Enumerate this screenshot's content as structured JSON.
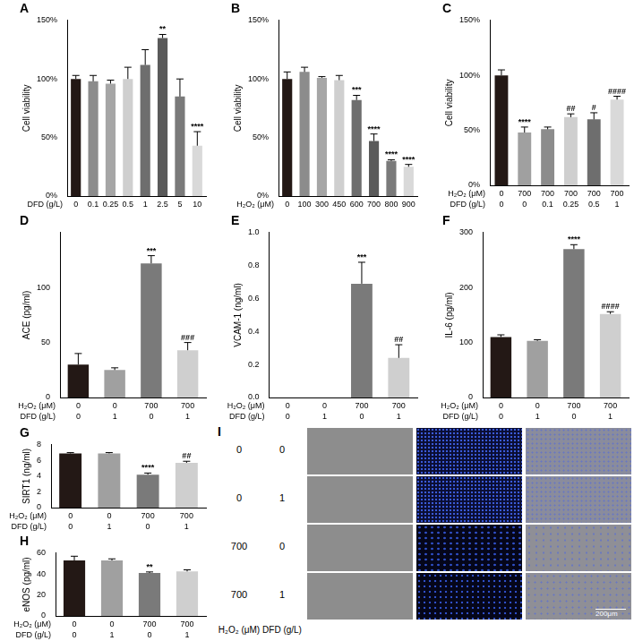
{
  "chart_data": [
    {
      "type": "bar",
      "title": "A",
      "ylabel": "Cell viability",
      "xlabel": [
        "DFD (g/L)"
      ],
      "categories": [
        "0",
        "0.1",
        "0.25",
        "0.5",
        "1",
        "2.5",
        "5",
        "10"
      ],
      "values": [
        100,
        98,
        96,
        100,
        112,
        135,
        85,
        43
      ],
      "errors": [
        3,
        5,
        3,
        10,
        13,
        3,
        15,
        12
      ],
      "annotations": [
        null,
        null,
        null,
        null,
        null,
        "**",
        null,
        "****"
      ],
      "colors": [
        "#231815",
        "#8c8c8c",
        "#a6a6a6",
        "#cfcfcf",
        "#6e6e6e",
        "#5a5a5a",
        "#7a7a7a",
        "#d9d9d9"
      ],
      "ylim": [
        0,
        150
      ],
      "yticks": [
        {
          "value": 0,
          "label": "0%"
        },
        {
          "value": 50,
          "label": "50%"
        },
        {
          "value": 100,
          "label": "100%"
        },
        {
          "value": 150,
          "label": "150%"
        }
      ],
      "grid": false
    },
    {
      "type": "bar",
      "title": "B",
      "ylabel": "Cell viability",
      "xlabel": [
        "H₂O₂ (μM)"
      ],
      "categories": [
        "0",
        "100",
        "300",
        "450",
        "600",
        "700",
        "800",
        "900"
      ],
      "values": [
        100,
        106,
        101,
        99,
        82,
        47,
        30,
        25
      ],
      "errors": [
        6,
        4,
        1,
        4,
        4,
        6,
        1,
        2
      ],
      "annotations": [
        null,
        null,
        null,
        null,
        "***",
        "****",
        "****",
        "****"
      ],
      "colors": [
        "#231815",
        "#8c8c8c",
        "#a6a6a6",
        "#cfcfcf",
        "#6e6e6e",
        "#5a5a5a",
        "#7a7a7a",
        "#d9d9d9"
      ],
      "ylim": [
        0,
        150
      ],
      "yticks": [
        {
          "value": 0,
          "label": "0%"
        },
        {
          "value": 50,
          "label": "50%"
        },
        {
          "value": 100,
          "label": "100%"
        },
        {
          "value": 150,
          "label": "150%"
        }
      ],
      "grid": false
    },
    {
      "type": "bar",
      "title": "C",
      "ylabel": "Cell viability",
      "xlabel": [
        "H₂O₂ (μM)",
        "DFD (g/L)"
      ],
      "categories": [
        [
          "0",
          "0"
        ],
        [
          "700",
          "0"
        ],
        [
          "700",
          "0.1"
        ],
        [
          "700",
          "0.25"
        ],
        [
          "700",
          "0.5"
        ],
        [
          "700",
          "1"
        ]
      ],
      "values": [
        100,
        48,
        51,
        62,
        60,
        78
      ],
      "errors": [
        5,
        5,
        2,
        3,
        6,
        3
      ],
      "annotations": [
        null,
        "****",
        null,
        "##",
        "#",
        "####"
      ],
      "colors": [
        "#231815",
        "#a0a0a0",
        "#8c8c8c",
        "#cfcfcf",
        "#6e6e6e",
        "#d9d9d9"
      ],
      "ylim": [
        0,
        150
      ],
      "yticks": [
        {
          "value": 0,
          "label": "0%"
        },
        {
          "value": 50,
          "label": "50%"
        },
        {
          "value": 100,
          "label": "100%"
        },
        {
          "value": 150,
          "label": "150%"
        }
      ],
      "grid": false
    },
    {
      "type": "bar",
      "title": "D",
      "ylabel": "ACE (pg/ml)",
      "xlabel": [
        "H₂O₂ (μM)",
        "DFD (g/L)"
      ],
      "categories": [
        [
          "0",
          "0"
        ],
        [
          "0",
          "1"
        ],
        [
          "700",
          "0"
        ],
        [
          "700",
          "1"
        ]
      ],
      "values": [
        30,
        25,
        122,
        43
      ],
      "errors": [
        10,
        2,
        7,
        7
      ],
      "annotations": [
        null,
        null,
        "***",
        "###"
      ],
      "colors": [
        "#231815",
        "#a0a0a0",
        "#7a7a7a",
        "#cfcfcf"
      ],
      "ylim": [
        0,
        150
      ],
      "yticks": [
        0,
        50,
        100
      ],
      "grid": false
    },
    {
      "type": "bar",
      "title": "E",
      "ylabel": "VCAM-1 (ng/ml)",
      "xlabel": [
        "H₂O₂ (μM)",
        "DFD (g/L)"
      ],
      "categories": [
        [
          "0",
          "0"
        ],
        [
          "0",
          "1"
        ],
        [
          "700",
          "0"
        ],
        [
          "700",
          "1"
        ]
      ],
      "values": [
        0,
        0,
        0.69,
        0.24
      ],
      "errors": [
        0,
        0,
        0.13,
        0.08
      ],
      "annotations": [
        null,
        null,
        "***",
        "##"
      ],
      "colors": [
        "#231815",
        "#a0a0a0",
        "#7a7a7a",
        "#cfcfcf"
      ],
      "ylim": [
        0,
        1
      ],
      "yticks": [
        {
          "value": 0,
          "label": "0.0"
        },
        0.2,
        0.4,
        0.6,
        0.8,
        {
          "value": 1,
          "label": "1.0"
        }
      ],
      "grid": false
    },
    {
      "type": "bar",
      "title": "F",
      "ylabel": "IL-6 (pg/ml)",
      "xlabel": [
        "H₂O₂ (μM)",
        "DFD (g/L)"
      ],
      "categories": [
        [
          "0",
          "0"
        ],
        [
          "0",
          "1"
        ],
        [
          "700",
          "0"
        ],
        [
          "700",
          "1"
        ]
      ],
      "values": [
        110,
        103,
        270,
        152
      ],
      "errors": [
        4,
        2,
        8,
        4
      ],
      "annotations": [
        null,
        null,
        "****",
        "####"
      ],
      "colors": [
        "#231815",
        "#a0a0a0",
        "#7a7a7a",
        "#cfcfcf"
      ],
      "ylim": [
        0,
        300
      ],
      "yticks": [
        0,
        100,
        200,
        300
      ],
      "grid": false
    },
    {
      "type": "bar",
      "title": "G",
      "ylabel": "SIRT1 (ng/ml)",
      "xlabel": [
        "H₂O₂ (μM)",
        "DFD (g/L)"
      ],
      "categories": [
        [
          "0",
          "0"
        ],
        [
          "0",
          "1"
        ],
        [
          "700",
          "0"
        ],
        [
          "700",
          "1"
        ]
      ],
      "values": [
        6.9,
        6.9,
        4.2,
        5.7
      ],
      "errors": [
        0.1,
        0.1,
        0.2,
        0.2
      ],
      "annotations": [
        null,
        null,
        "****",
        "##"
      ],
      "colors": [
        "#231815",
        "#a0a0a0",
        "#7a7a7a",
        "#cfcfcf"
      ],
      "ylim": [
        0,
        8
      ],
      "yticks": [
        0,
        2,
        4,
        6,
        8
      ],
      "grid": false
    },
    {
      "type": "bar",
      "title": "H",
      "ylabel": "eNOS (pg/ml)",
      "xlabel": [
        "H₂O₂ (μM)",
        "DFD (g/L)"
      ],
      "categories": [
        [
          "0",
          "0"
        ],
        [
          "0",
          "1"
        ],
        [
          "700",
          "0"
        ],
        [
          "700",
          "1"
        ]
      ],
      "values": [
        53,
        53,
        41,
        42.5
      ],
      "errors": [
        4,
        1.5,
        1,
        1.5
      ],
      "annotations": [
        null,
        null,
        "**",
        null
      ],
      "colors": [
        "#231815",
        "#a0a0a0",
        "#7a7a7a",
        "#cfcfcf"
      ],
      "ylim": [
        0,
        60
      ],
      "yticks": [
        0,
        20,
        40,
        60
      ],
      "grid": false
    }
  ],
  "image_panel": {
    "title": "I",
    "row_labels": [
      [
        "0",
        "0"
      ],
      [
        "0",
        "1"
      ],
      [
        "700",
        "0"
      ],
      [
        "700",
        "1"
      ]
    ],
    "column_labels": [
      "H₂O₂ (μM)",
      "DFD (g/L)"
    ],
    "scale_bar": "200μm"
  }
}
